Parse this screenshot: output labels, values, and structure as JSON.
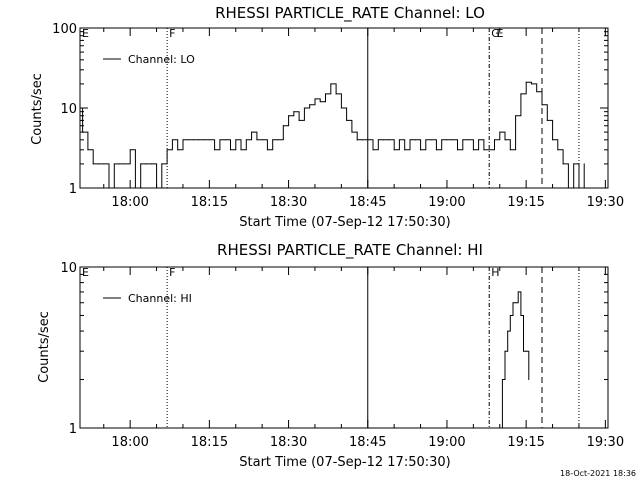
{
  "footer": {
    "timestamp": "18-Oct-2021 18:36"
  },
  "chart_data": [
    {
      "type": "line",
      "title": "RHESSI PARTICLE_RATE Channel: LO",
      "xlabel": "Start Time (07-Sep-12 17:50:30)",
      "ylabel": "Counts/sec",
      "yscale": "log",
      "ylim": [
        1,
        100
      ],
      "ytick_labels": [
        "1",
        "10",
        "100"
      ],
      "xlim": [
        "17:50:30",
        "19:30:30"
      ],
      "xtick_labels": [
        "18:00",
        "18:15",
        "18:30",
        "18:45",
        "19:00",
        "19:15",
        "19:30"
      ],
      "legend": "top-left",
      "series": [
        {
          "name": "Channel: LO",
          "x": [
            "17:50:30",
            "17:51",
            "17:52",
            "17:53",
            "17:54",
            "17:55",
            "17:56",
            "17:57",
            "17:58",
            "17:59",
            "18:00",
            "18:01",
            "18:02",
            "18:03",
            "18:04",
            "18:05",
            "18:06",
            "18:07",
            "18:08",
            "18:09",
            "18:10",
            "18:11",
            "18:12",
            "18:13",
            "18:14",
            "18:15",
            "18:16",
            "18:17",
            "18:18",
            "18:19",
            "18:20",
            "18:21",
            "18:22",
            "18:23",
            "18:24",
            "18:25",
            "18:26",
            "18:27",
            "18:28",
            "18:29",
            "18:30",
            "18:31",
            "18:32",
            "18:33",
            "18:34",
            "18:35",
            "18:36",
            "18:37",
            "18:38",
            "18:39",
            "18:40",
            "18:41",
            "18:42",
            "18:43",
            "18:44",
            "18:45",
            "18:46",
            "18:47",
            "18:48",
            "18:49",
            "18:50",
            "18:51",
            "18:52",
            "18:53",
            "18:54",
            "18:55",
            "18:56",
            "18:57",
            "18:58",
            "18:59",
            "19:00",
            "19:01",
            "19:02",
            "19:03",
            "19:04",
            "19:05",
            "19:06",
            "19:07",
            "19:08",
            "19:09",
            "19:10",
            "19:11",
            "19:12",
            "19:13",
            "19:14",
            "19:15",
            "19:16",
            "19:17",
            "19:18",
            "19:19",
            "19:20",
            "19:21",
            "19:22",
            "19:23",
            "19:24",
            "19:25",
            "19:26"
          ],
          "values": [
            10,
            5,
            3,
            2,
            2,
            2,
            1,
            2,
            2,
            2,
            3,
            1,
            2,
            2,
            2,
            1,
            2,
            3,
            4,
            3,
            4,
            4,
            4,
            4,
            4,
            4,
            3,
            4,
            4,
            3,
            4,
            3,
            4,
            5,
            4,
            4,
            3,
            4,
            4,
            6,
            8,
            9,
            7,
            10,
            11,
            13,
            12,
            15,
            20,
            15,
            10,
            7,
            5,
            4,
            4,
            4,
            3,
            4,
            4,
            4,
            3,
            4,
            3,
            4,
            4,
            3,
            4,
            4,
            3,
            4,
            4,
            4,
            3,
            4,
            4,
            3,
            4,
            3,
            3,
            4,
            5,
            4,
            3,
            8,
            15,
            21,
            20,
            16,
            11,
            7,
            4,
            3,
            2,
            1,
            2,
            1,
            2
          ]
        }
      ],
      "markers": [
        {
          "label": "E",
          "x": "17:50:30",
          "style": "none"
        },
        {
          "label": "F",
          "x": "18:07",
          "style": "dotted"
        },
        {
          "label": "G",
          "x": "19:08",
          "style": "dash-dot"
        },
        {
          "label": "E",
          "x": "19:09",
          "style": "none"
        },
        {
          "label": "",
          "x": "18:45",
          "style": "solid"
        },
        {
          "label": "",
          "x": "19:18",
          "style": "dashed"
        },
        {
          "label": "",
          "x": "19:25",
          "style": "dotted"
        }
      ]
    },
    {
      "type": "line",
      "title": "RHESSI PARTICLE_RATE Channel: HI",
      "xlabel": "Start Time (07-Sep-12 17:50:30)",
      "ylabel": "Counts/sec",
      "yscale": "log",
      "ylim": [
        1,
        10
      ],
      "ytick_labels": [
        "1",
        "10"
      ],
      "xlim": [
        "17:50:30",
        "19:30:30"
      ],
      "xtick_labels": [
        "18:00",
        "18:15",
        "18:30",
        "18:45",
        "19:00",
        "19:15",
        "19:30"
      ],
      "legend": "top-left",
      "series": [
        {
          "name": "Channel: HI",
          "x": [
            "19:10",
            "19:10:30",
            "19:11",
            "19:11:30",
            "19:12",
            "19:12:30",
            "19:13",
            "19:13:30",
            "19:14",
            "19:14:30",
            "19:15",
            "19:15:30"
          ],
          "values": [
            1,
            2,
            3,
            4,
            5,
            6,
            6,
            7,
            5,
            3,
            3,
            2
          ]
        }
      ],
      "markers": [
        {
          "label": "E",
          "x": "17:50:30",
          "style": "none"
        },
        {
          "label": "F",
          "x": "18:07",
          "style": "dotted"
        },
        {
          "label": "H",
          "x": "19:08",
          "style": "dash-dot"
        },
        {
          "label": "",
          "x": "18:45",
          "style": "solid"
        },
        {
          "label": "",
          "x": "19:18",
          "style": "dashed"
        },
        {
          "label": "",
          "x": "19:25",
          "style": "dotted"
        }
      ]
    }
  ]
}
